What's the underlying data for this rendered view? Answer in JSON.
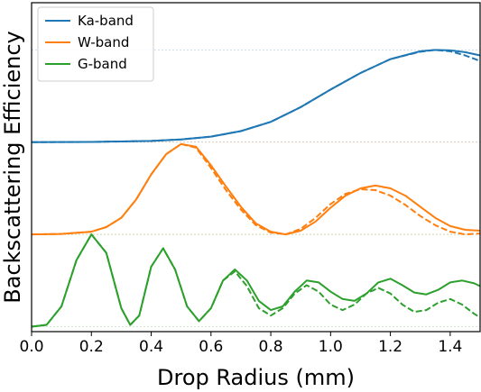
{
  "chart_data": {
    "type": "line",
    "xlabel": "Drop Radius (mm)",
    "ylabel": "Backscattering Efficiency",
    "xlim": [
      0.0,
      1.5
    ],
    "xticks": [
      "0.0",
      "0.2",
      "0.4",
      "0.6",
      "0.8",
      "1.0",
      "1.2",
      "1.4"
    ],
    "legend_position": "upper-left",
    "ylim": [
      0,
      1
    ],
    "y_ticks_visible": false,
    "grid": "faint horizontal reference lines at each series baseline and level 1",
    "series": [
      {
        "name": "Ka-band",
        "color": "#1f77b4",
        "baseline": 0.6,
        "scale": 0.3,
        "solid": {
          "x": [
            0.0,
            0.2,
            0.4,
            0.5,
            0.6,
            0.7,
            0.8,
            0.9,
            1.0,
            1.1,
            1.2,
            1.3,
            1.35,
            1.4,
            1.45,
            1.5
          ],
          "y": [
            0.0,
            0.003,
            0.013,
            0.03,
            0.06,
            0.12,
            0.22,
            0.38,
            0.57,
            0.75,
            0.9,
            0.985,
            1.0,
            0.995,
            0.975,
            0.94
          ]
        },
        "dashed": {
          "x": [
            0.0,
            0.2,
            0.4,
            0.5,
            0.6,
            0.7,
            0.8,
            0.9,
            1.0,
            1.1,
            1.2,
            1.3,
            1.35,
            1.4,
            1.45,
            1.5
          ],
          "y": [
            0.0,
            0.003,
            0.013,
            0.03,
            0.06,
            0.12,
            0.22,
            0.38,
            0.57,
            0.75,
            0.9,
            0.98,
            1.0,
            0.985,
            0.94,
            0.88
          ]
        }
      },
      {
        "name": "W-band",
        "color": "#ff7f0e",
        "baseline": 0.3,
        "scale": 0.3,
        "solid": {
          "x": [
            0.0,
            0.1,
            0.2,
            0.25,
            0.3,
            0.35,
            0.4,
            0.45,
            0.5,
            0.55,
            0.6,
            0.65,
            0.7,
            0.75,
            0.8,
            0.85,
            0.9,
            0.95,
            1.0,
            1.05,
            1.1,
            1.15,
            1.2,
            1.25,
            1.3,
            1.35,
            1.4,
            1.45,
            1.5
          ],
          "y": [
            0.0,
            0.005,
            0.03,
            0.08,
            0.18,
            0.38,
            0.65,
            0.87,
            0.98,
            0.95,
            0.75,
            0.52,
            0.3,
            0.12,
            0.03,
            0.0,
            0.04,
            0.14,
            0.29,
            0.42,
            0.5,
            0.53,
            0.5,
            0.42,
            0.3,
            0.18,
            0.09,
            0.05,
            0.04
          ]
        },
        "dashed": {
          "x": [
            0.0,
            0.1,
            0.2,
            0.25,
            0.3,
            0.35,
            0.4,
            0.45,
            0.5,
            0.55,
            0.6,
            0.65,
            0.7,
            0.75,
            0.8,
            0.85,
            0.9,
            0.95,
            1.0,
            1.05,
            1.1,
            1.15,
            1.2,
            1.25,
            1.3,
            1.35,
            1.4,
            1.45,
            1.5
          ],
          "y": [
            0.0,
            0.005,
            0.03,
            0.08,
            0.18,
            0.38,
            0.65,
            0.87,
            0.98,
            0.94,
            0.72,
            0.48,
            0.27,
            0.1,
            0.02,
            0.0,
            0.06,
            0.18,
            0.33,
            0.44,
            0.49,
            0.48,
            0.42,
            0.32,
            0.2,
            0.1,
            0.03,
            0.0,
            0.01
          ]
        }
      },
      {
        "name": "G-band",
        "color": "#2ca02c",
        "baseline": 0.0,
        "scale": 0.3,
        "solid": {
          "x": [
            0.0,
            0.05,
            0.1,
            0.15,
            0.2,
            0.25,
            0.3,
            0.33,
            0.36,
            0.4,
            0.44,
            0.48,
            0.52,
            0.56,
            0.6,
            0.64,
            0.68,
            0.72,
            0.76,
            0.8,
            0.84,
            0.88,
            0.92,
            0.96,
            1.0,
            1.04,
            1.08,
            1.12,
            1.16,
            1.2,
            1.24,
            1.28,
            1.32,
            1.36,
            1.4,
            1.44,
            1.48,
            1.5
          ],
          "y": [
            0.0,
            0.02,
            0.22,
            0.72,
            1.0,
            0.8,
            0.2,
            0.02,
            0.12,
            0.65,
            0.85,
            0.62,
            0.22,
            0.06,
            0.2,
            0.5,
            0.62,
            0.5,
            0.28,
            0.18,
            0.22,
            0.38,
            0.5,
            0.48,
            0.38,
            0.3,
            0.28,
            0.36,
            0.48,
            0.52,
            0.45,
            0.37,
            0.35,
            0.4,
            0.48,
            0.5,
            0.47,
            0.44
          ]
        },
        "dashed": {
          "x": [
            0.0,
            0.05,
            0.1,
            0.15,
            0.2,
            0.25,
            0.3,
            0.33,
            0.36,
            0.4,
            0.44,
            0.48,
            0.52,
            0.56,
            0.6,
            0.64,
            0.68,
            0.72,
            0.76,
            0.8,
            0.84,
            0.88,
            0.92,
            0.96,
            1.0,
            1.04,
            1.08,
            1.12,
            1.16,
            1.2,
            1.24,
            1.28,
            1.32,
            1.36,
            1.4,
            1.44,
            1.48,
            1.5
          ],
          "y": [
            0.0,
            0.02,
            0.22,
            0.72,
            1.0,
            0.8,
            0.2,
            0.02,
            0.12,
            0.65,
            0.85,
            0.62,
            0.22,
            0.06,
            0.2,
            0.5,
            0.6,
            0.44,
            0.2,
            0.12,
            0.2,
            0.36,
            0.45,
            0.38,
            0.24,
            0.18,
            0.24,
            0.36,
            0.42,
            0.36,
            0.24,
            0.16,
            0.18,
            0.26,
            0.3,
            0.24,
            0.14,
            0.1
          ]
        }
      }
    ]
  }
}
